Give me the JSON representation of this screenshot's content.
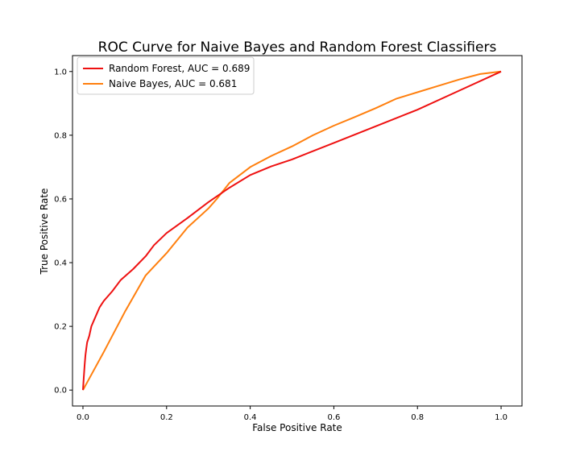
{
  "chart_data": {
    "type": "line",
    "title": "ROC Curve for Naive Bayes and Random Forest Classifiers",
    "xlabel": "False Positive Rate",
    "ylabel": "True Positive Rate",
    "xlim": [
      -0.025,
      1.05
    ],
    "ylim": [
      -0.05,
      1.05
    ],
    "xticks": [
      "0.0",
      "0.2",
      "0.4",
      "0.6",
      "0.8",
      "1.0"
    ],
    "yticks": [
      "0.0",
      "0.2",
      "0.4",
      "0.6",
      "0.8",
      "1.0"
    ],
    "grid": false,
    "legend_position": "top-left",
    "series": [
      {
        "name": "Random Forest, AUC = 0.689",
        "color": "#ee1111",
        "x": [
          0,
          0.002,
          0.004,
          0.006,
          0.008,
          0.01,
          0.015,
          0.02,
          0.03,
          0.04,
          0.05,
          0.07,
          0.09,
          0.12,
          0.15,
          0.17,
          0.2,
          0.25,
          0.3,
          0.35,
          0.4,
          0.45,
          0.5,
          0.6,
          0.7,
          0.8,
          0.9,
          1.0
        ],
        "y": [
          0,
          0.04,
          0.08,
          0.11,
          0.13,
          0.15,
          0.17,
          0.2,
          0.23,
          0.26,
          0.28,
          0.31,
          0.345,
          0.38,
          0.42,
          0.455,
          0.493,
          0.54,
          0.59,
          0.635,
          0.675,
          0.702,
          0.724,
          0.776,
          0.828,
          0.88,
          0.94,
          1.0
        ]
      },
      {
        "name": "Naive Bayes, AUC = 0.681",
        "color": "#ff7f0e",
        "x": [
          0,
          0.05,
          0.1,
          0.15,
          0.2,
          0.25,
          0.3,
          0.32,
          0.35,
          0.4,
          0.45,
          0.5,
          0.55,
          0.6,
          0.65,
          0.7,
          0.75,
          0.8,
          0.85,
          0.9,
          0.95,
          1.0
        ],
        "y": [
          0,
          0.12,
          0.245,
          0.36,
          0.43,
          0.51,
          0.57,
          0.6,
          0.65,
          0.7,
          0.735,
          0.765,
          0.8,
          0.83,
          0.857,
          0.885,
          0.915,
          0.935,
          0.955,
          0.975,
          0.992,
          1.0
        ]
      }
    ]
  }
}
